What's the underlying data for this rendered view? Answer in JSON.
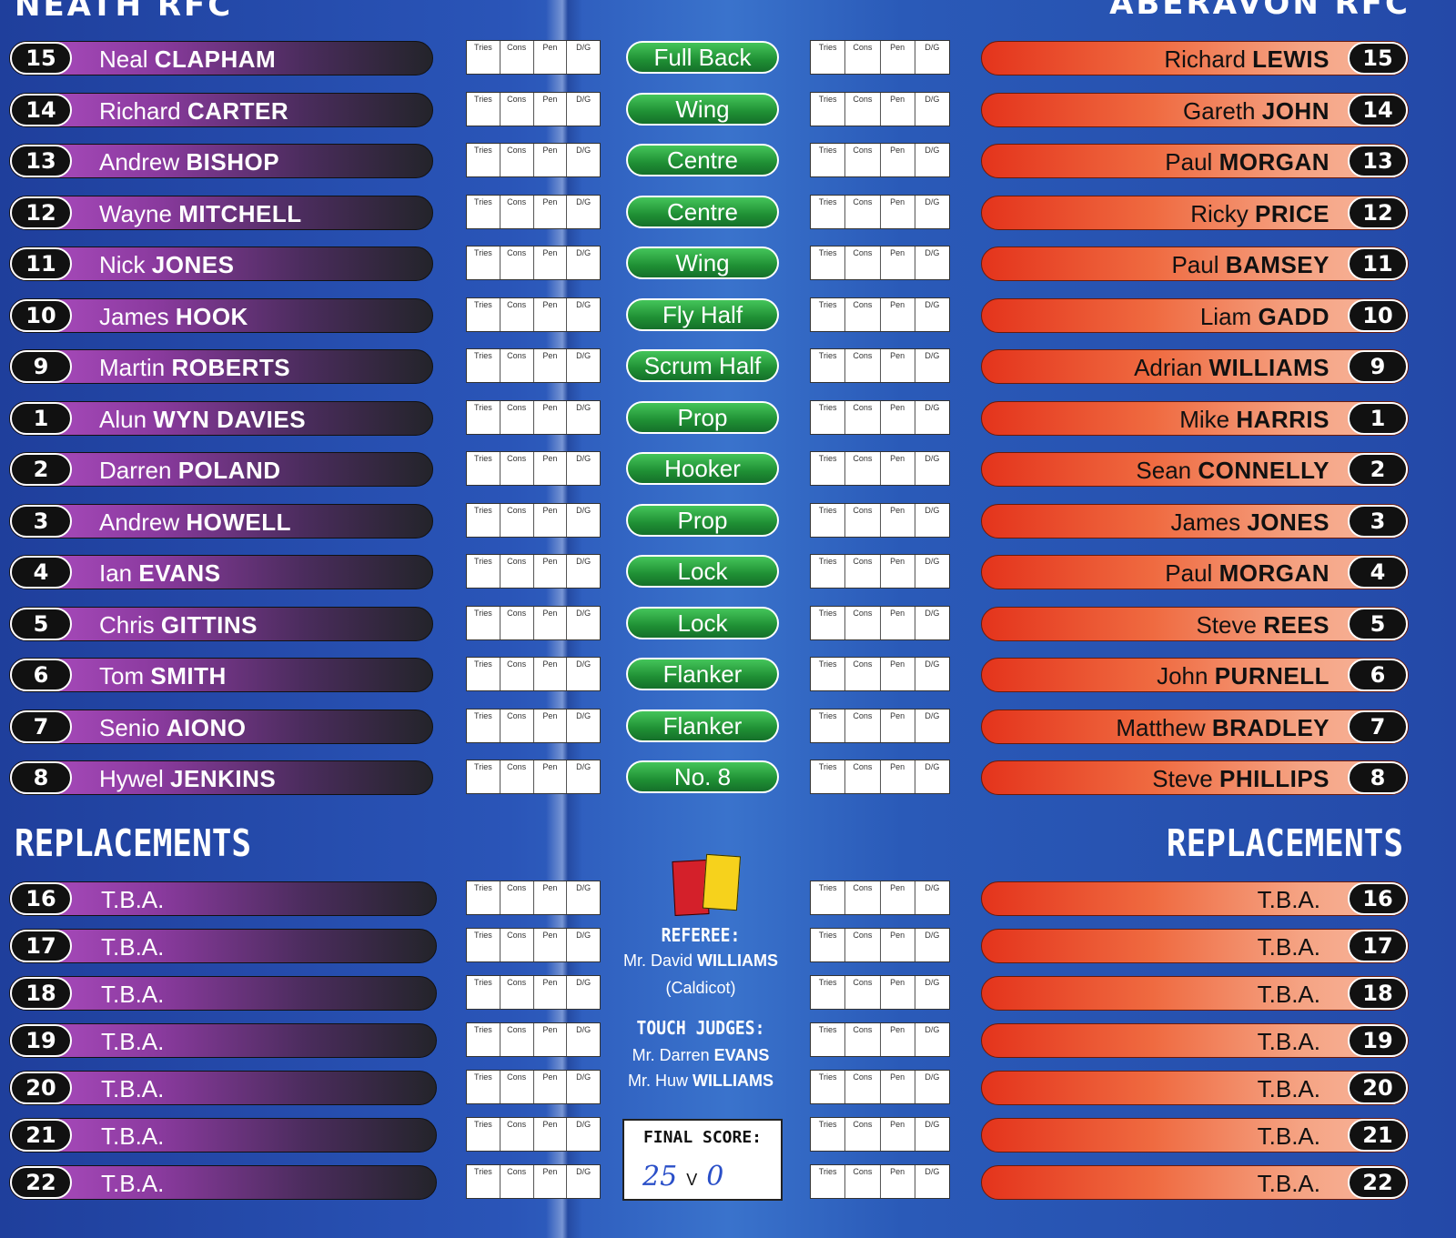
{
  "headers": {
    "home_team": "NEATH RFC",
    "away_team": "ABERAVON RFC",
    "replacements_home": "REPLACEMENTS",
    "replacements_away": "REPLACEMENTS"
  },
  "score_labels": [
    "Tries",
    "Cons",
    "Pen",
    "D/G"
  ],
  "colors": {
    "home_pill_start": "#b14fc4",
    "away_pill_start": "#e4341c",
    "position_pill": "#2aa845",
    "background": "#2a55b8"
  },
  "rows": [
    {
      "home_num": "15",
      "home_first": "Neal",
      "home_last": "CLAPHAM",
      "position": "Full Back",
      "away_first": "Richard",
      "away_last": "LEWIS",
      "away_num": "15"
    },
    {
      "home_num": "14",
      "home_first": "Richard",
      "home_last": "CARTER",
      "position": "Wing",
      "away_first": "Gareth",
      "away_last": "JOHN",
      "away_num": "14"
    },
    {
      "home_num": "13",
      "home_first": "Andrew",
      "home_last": "BISHOP",
      "position": "Centre",
      "away_first": "Paul",
      "away_last": "MORGAN",
      "away_num": "13"
    },
    {
      "home_num": "12",
      "home_first": "Wayne",
      "home_last": "MITCHELL",
      "position": "Centre",
      "away_first": "Ricky",
      "away_last": "PRICE",
      "away_num": "12"
    },
    {
      "home_num": "11",
      "home_first": "Nick",
      "home_last": "JONES",
      "position": "Wing",
      "away_first": "Paul",
      "away_last": "BAMSEY",
      "away_num": "11"
    },
    {
      "home_num": "10",
      "home_first": "James",
      "home_last": "HOOK",
      "position": "Fly Half",
      "away_first": "Liam",
      "away_last": "GADD",
      "away_num": "10"
    },
    {
      "home_num": "9",
      "home_first": "Martin",
      "home_last": "ROBERTS",
      "position": "Scrum Half",
      "away_first": "Adrian",
      "away_last": "WILLIAMS",
      "away_num": "9"
    },
    {
      "home_num": "1",
      "home_first": "Alun",
      "home_last": "WYN DAVIES",
      "position": "Prop",
      "away_first": "Mike",
      "away_last": "HARRIS",
      "away_num": "1"
    },
    {
      "home_num": "2",
      "home_first": "Darren",
      "home_last": "POLAND",
      "position": "Hooker",
      "away_first": "Sean",
      "away_last": "CONNELLY",
      "away_num": "2"
    },
    {
      "home_num": "3",
      "home_first": "Andrew",
      "home_last": "HOWELL",
      "position": "Prop",
      "away_first": "James",
      "away_last": "JONES",
      "away_num": "3"
    },
    {
      "home_num": "4",
      "home_first": "Ian",
      "home_last": "EVANS",
      "position": "Lock",
      "away_first": "Paul",
      "away_last": "MORGAN",
      "away_num": "4"
    },
    {
      "home_num": "5",
      "home_first": "Chris",
      "home_last": "GITTINS",
      "position": "Lock",
      "away_first": "Steve",
      "away_last": "REES",
      "away_num": "5"
    },
    {
      "home_num": "6",
      "home_first": "Tom",
      "home_last": "SMITH",
      "position": "Flanker",
      "away_first": "John",
      "away_last": "PURNELL",
      "away_num": "6"
    },
    {
      "home_num": "7",
      "home_first": "Senio",
      "home_last": "AIONO",
      "position": "Flanker",
      "away_first": "Matthew",
      "away_last": "BRADLEY",
      "away_num": "7"
    },
    {
      "home_num": "8",
      "home_first": "Hywel",
      "home_last": "JENKINS",
      "position": "No. 8",
      "away_first": "Steve",
      "away_last": "PHILLIPS",
      "away_num": "8"
    }
  ],
  "replacements": [
    {
      "num": "16",
      "home": "T.B.A.",
      "away": "T.B.A."
    },
    {
      "num": "17",
      "home": "T.B.A.",
      "away": "T.B.A."
    },
    {
      "num": "18",
      "home": "T.B.A.",
      "away": "T.B.A."
    },
    {
      "num": "19",
      "home": "T.B.A.",
      "away": "T.B.A."
    },
    {
      "num": "20",
      "home": "T.B.A.",
      "away": "T.B.A."
    },
    {
      "num": "21",
      "home": "T.B.A.",
      "away": "T.B.A."
    },
    {
      "num": "22",
      "home": "T.B.A.",
      "away": "T.B.A."
    }
  ],
  "officials": {
    "referee_label": "REFEREE:",
    "referee_title": "Mr. David",
    "referee_name": "WILLIAMS",
    "referee_club": "(Caldicot)",
    "touch_label": "TOUCH JUDGES:",
    "touch1_title": "Mr.  Darren",
    "touch1_name": "EVANS",
    "touch2_title": "Mr. Huw",
    "touch2_name": "WILLIAMS"
  },
  "final_score": {
    "label": "FINAL SCORE:",
    "home": "25",
    "separator": "V",
    "away": "0"
  }
}
